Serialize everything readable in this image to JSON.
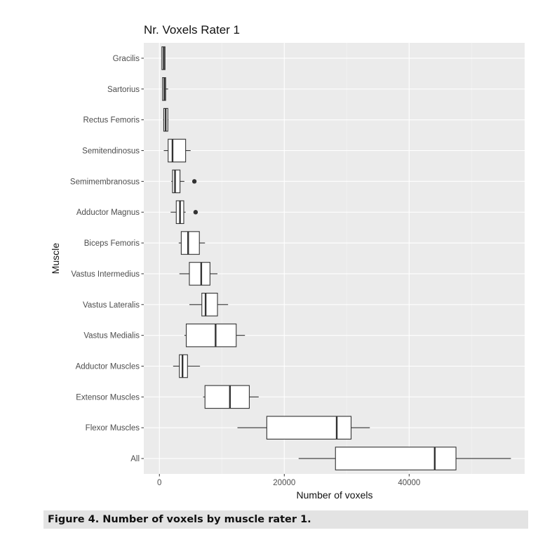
{
  "caption": "Figure 4. Number of voxels by muscle rater 1.",
  "chart_data": {
    "type": "boxplot",
    "orientation": "horizontal",
    "title": "Nr. Voxels Rater 1",
    "xlabel": "Number of voxels",
    "ylabel": "Muscle",
    "xlim": [
      -2500,
      58500
    ],
    "x_ticks": [
      0,
      20000,
      40000
    ],
    "x_tick_labels": [
      "0",
      "20000",
      "40000"
    ],
    "grid": true,
    "colors": {
      "panel_background": "#ebebeb",
      "grid_major": "#ffffff",
      "grid_minor": "#f5f5f5",
      "box_fill": "#ffffff",
      "box_stroke": "#333333",
      "outlier": "#333333"
    },
    "categories": [
      "Gracilis",
      "Sartorius",
      "Rectus Femoris",
      "Semitendinosus",
      "Semimembranosus",
      "Adductor Magnus",
      "Biceps Femoris",
      "Vastus Intermedius",
      "Vastus Lateralis",
      "Vastus Medialis",
      "Adductor Muscles",
      "Extensor Muscles",
      "Flexor Muscles",
      "All"
    ],
    "boxes": [
      {
        "label": "Gracilis",
        "whisker_low": 400,
        "q1": 400,
        "median": 700,
        "q3": 900,
        "whisker_high": 900,
        "outliers": []
      },
      {
        "label": "Sartorius",
        "whisker_low": 450,
        "q1": 500,
        "median": 800,
        "q3": 1000,
        "whisker_high": 1400,
        "outliers": []
      },
      {
        "label": "Rectus Femoris",
        "whisker_low": 600,
        "q1": 700,
        "median": 1000,
        "q3": 1350,
        "whisker_high": 1450,
        "outliers": []
      },
      {
        "label": "Semitendinosus",
        "whisker_low": 700,
        "q1": 1400,
        "median": 2100,
        "q3": 4200,
        "whisker_high": 5000,
        "outliers": []
      },
      {
        "label": "Semimembranosus",
        "whisker_low": 1900,
        "q1": 2100,
        "median": 2500,
        "q3": 3300,
        "whisker_high": 4000,
        "outliers": [
          5600
        ]
      },
      {
        "label": "Adductor Magnus",
        "whisker_low": 1800,
        "q1": 2700,
        "median": 3300,
        "q3": 3900,
        "whisker_high": 4200,
        "outliers": [
          5800
        ]
      },
      {
        "label": "Biceps Femoris",
        "whisker_low": 3100,
        "q1": 3500,
        "median": 4600,
        "q3": 6400,
        "whisker_high": 7300,
        "outliers": []
      },
      {
        "label": "Vastus Intermedius",
        "whisker_low": 3200,
        "q1": 4800,
        "median": 6700,
        "q3": 8100,
        "whisker_high": 9300,
        "outliers": []
      },
      {
        "label": "Vastus Lateralis",
        "whisker_low": 4800,
        "q1": 6800,
        "median": 7400,
        "q3": 9300,
        "whisker_high": 11000,
        "outliers": []
      },
      {
        "label": "Vastus Medialis",
        "whisker_low": 4000,
        "q1": 4300,
        "median": 9000,
        "q3": 12300,
        "whisker_high": 13700,
        "outliers": []
      },
      {
        "label": "Adductor Muscles",
        "whisker_low": 2200,
        "q1": 3200,
        "median": 3700,
        "q3": 4500,
        "whisker_high": 6500,
        "outliers": []
      },
      {
        "label": "Extensor Muscles",
        "whisker_low": 7000,
        "q1": 7300,
        "median": 11300,
        "q3": 14400,
        "whisker_high": 15900,
        "outliers": []
      },
      {
        "label": "Flexor Muscles",
        "whisker_low": 12500,
        "q1": 17200,
        "median": 28400,
        "q3": 30700,
        "whisker_high": 33700,
        "outliers": []
      },
      {
        "label": "All",
        "whisker_low": 22300,
        "q1": 28200,
        "median": 44100,
        "q3": 47500,
        "whisker_high": 56300,
        "outliers": []
      }
    ]
  }
}
